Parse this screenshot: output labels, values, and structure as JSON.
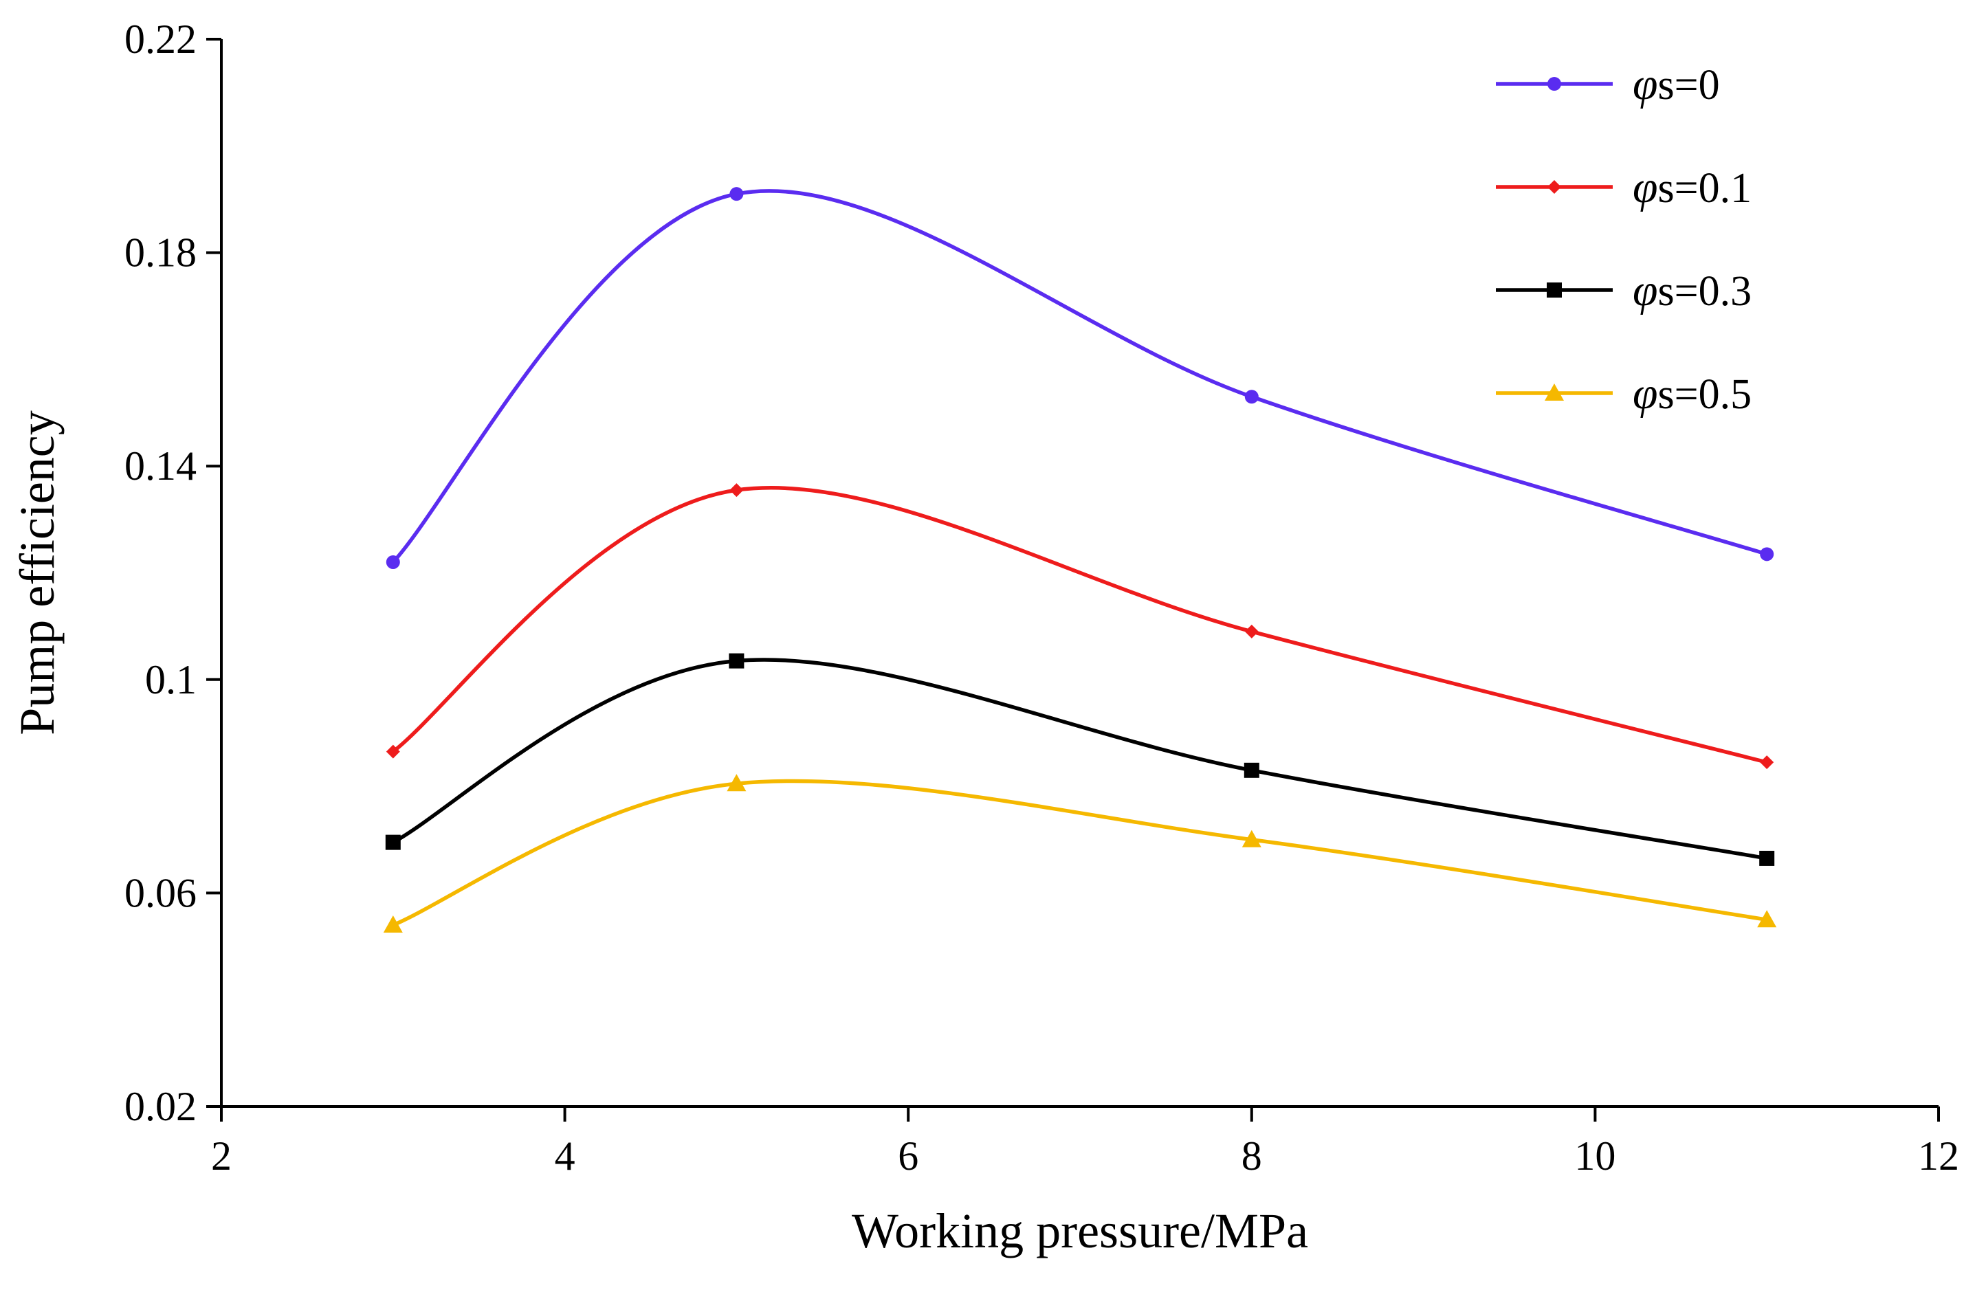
{
  "chart_data": {
    "type": "line",
    "title": "",
    "xlabel": "Working pressure/MPa",
    "ylabel": "Pump efficiency",
    "xlim": [
      2,
      12
    ],
    "ylim": [
      0.02,
      0.22
    ],
    "xticks": [
      2,
      4,
      6,
      8,
      10,
      12
    ],
    "xtick_labels": [
      "2",
      "4",
      "6",
      "8",
      "10",
      "12"
    ],
    "yticks": [
      0.02,
      0.06,
      0.1,
      0.14,
      0.18,
      0.22
    ],
    "ytick_labels": [
      "0.02",
      "0.06",
      "0.1",
      "0.14",
      "0.18",
      "0.22"
    ],
    "grid": false,
    "smooth": true,
    "legend_position": "top-right",
    "x": [
      3,
      5,
      8,
      11
    ],
    "series": [
      {
        "name": "φs=0",
        "symbol": "φ",
        "suffix": "s=0",
        "color": "#5a2cf0",
        "marker": "circle",
        "values": [
          0.122,
          0.191,
          0.153,
          0.1235
        ]
      },
      {
        "name": "φs=0.1",
        "symbol": "φ",
        "suffix": "s=0.1",
        "color": "#ee1c1c",
        "marker": "diamond",
        "values": [
          0.0865,
          0.1355,
          0.109,
          0.0845
        ]
      },
      {
        "name": "φs=0.3",
        "symbol": "φ",
        "suffix": "s=0.3",
        "color": "#000000",
        "marker": "square",
        "values": [
          0.0695,
          0.1035,
          0.083,
          0.0665
        ]
      },
      {
        "name": "φs=0.5",
        "symbol": "φ",
        "suffix": "s=0.5",
        "color": "#f5b800",
        "marker": "triangle",
        "values": [
          0.054,
          0.0805,
          0.07,
          0.055
        ]
      }
    ]
  }
}
